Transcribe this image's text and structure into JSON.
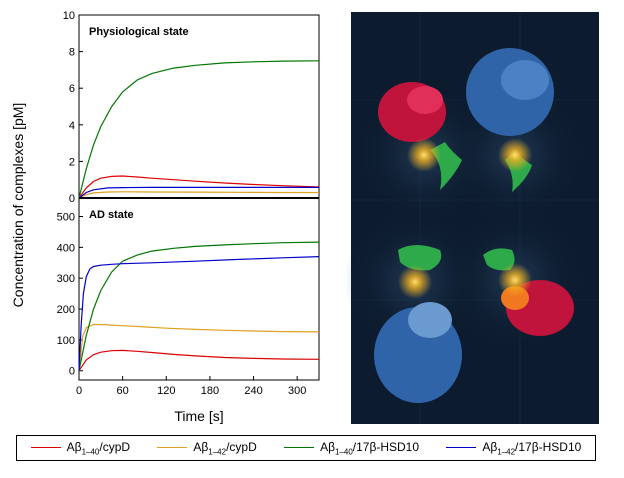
{
  "figure": {
    "ylabel": "Concentration of complexes [pM]",
    "xlabel": "Time [s]"
  },
  "legend": [
    {
      "main": "Aβ",
      "sub": "1–40",
      "rest": "/cypD",
      "color": "#dd0000"
    },
    {
      "main": "Aβ",
      "sub": "1–42",
      "rest": "/cypD",
      "color": "#e0a020"
    },
    {
      "main": "Aβ",
      "sub": "1–40",
      "rest": "/17β-HSD10",
      "color": "#007700"
    },
    {
      "main": "Aβ",
      "sub": "1–42",
      "rest": "/17β-HSD10",
      "color": "#0000cc"
    }
  ],
  "chart_data": [
    {
      "type": "line",
      "title": "Physiological state",
      "xlim": [
        0,
        330
      ],
      "ylim": [
        0,
        10
      ],
      "yticks": [
        0,
        2,
        4,
        6,
        8,
        10
      ],
      "series": [
        {
          "color": "#dd0000",
          "x": [
            0,
            10,
            20,
            30,
            45,
            60,
            80,
            100,
            130,
            160,
            200,
            240,
            280,
            330
          ],
          "y": [
            0,
            0.55,
            0.9,
            1.08,
            1.18,
            1.2,
            1.15,
            1.08,
            1.0,
            0.92,
            0.82,
            0.74,
            0.67,
            0.6
          ]
        },
        {
          "color": "#e0a020",
          "x": [
            0,
            10,
            20,
            40,
            60,
            100,
            160,
            220,
            280,
            330
          ],
          "y": [
            0,
            0.18,
            0.28,
            0.33,
            0.34,
            0.33,
            0.32,
            0.31,
            0.3,
            0.3
          ]
        },
        {
          "color": "#007700",
          "x": [
            0,
            10,
            20,
            30,
            45,
            60,
            80,
            100,
            130,
            160,
            200,
            240,
            280,
            330
          ],
          "y": [
            0,
            1.6,
            2.9,
            3.9,
            5.0,
            5.8,
            6.45,
            6.8,
            7.1,
            7.25,
            7.38,
            7.44,
            7.48,
            7.5
          ]
        },
        {
          "color": "#0000cc",
          "x": [
            0,
            10,
            20,
            40,
            60,
            100,
            160,
            220,
            280,
            330
          ],
          "y": [
            0,
            0.3,
            0.45,
            0.55,
            0.57,
            0.58,
            0.58,
            0.58,
            0.58,
            0.58
          ]
        }
      ]
    },
    {
      "type": "line",
      "title": "AD state",
      "xlabel": "Time [s]",
      "xlim": [
        0,
        330
      ],
      "ylim": [
        -30,
        560
      ],
      "xticks": [
        0,
        60,
        120,
        180,
        240,
        300
      ],
      "yticks": [
        0,
        100,
        200,
        300,
        400,
        500
      ],
      "series": [
        {
          "color": "#dd0000",
          "x": [
            0,
            10,
            20,
            30,
            45,
            60,
            80,
            100,
            130,
            160,
            200,
            240,
            280,
            330
          ],
          "y": [
            0,
            35,
            52,
            60,
            65,
            66,
            63,
            59,
            53,
            48,
            43,
            40,
            38,
            37
          ]
        },
        {
          "color": "#e0a020",
          "x": [
            0,
            5,
            10,
            20,
            30,
            45,
            60,
            90,
            120,
            160,
            200,
            240,
            280,
            330
          ],
          "y": [
            0,
            110,
            140,
            150,
            150,
            148,
            146,
            142,
            138,
            134,
            131,
            129,
            127,
            126
          ]
        },
        {
          "color": "#007700",
          "x": [
            0,
            10,
            20,
            30,
            45,
            60,
            80,
            100,
            130,
            160,
            200,
            240,
            280,
            330
          ],
          "y": [
            0,
            115,
            200,
            260,
            320,
            355,
            375,
            388,
            397,
            403,
            408,
            412,
            415,
            417
          ]
        },
        {
          "color": "#0000cc",
          "x": [
            0,
            3,
            6,
            10,
            15,
            20,
            30,
            45,
            60,
            100,
            160,
            220,
            280,
            330
          ],
          "y": [
            0,
            150,
            250,
            305,
            330,
            338,
            342,
            345,
            347,
            350,
            355,
            361,
            366,
            370
          ]
        }
      ]
    }
  ]
}
